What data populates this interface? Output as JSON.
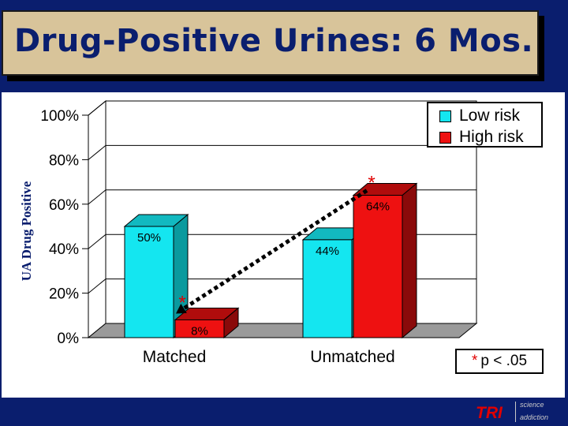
{
  "title": "Drug-Positive Urines: 6 Mos.",
  "chart_data": {
    "type": "bar",
    "categories": [
      "Matched",
      "Unmatched"
    ],
    "series": [
      {
        "name": "Low risk",
        "values": [
          50,
          44
        ],
        "labels": [
          "50%",
          "44%"
        ],
        "color": "#14e6f0"
      },
      {
        "name": "High risk",
        "values": [
          8,
          64
        ],
        "labels": [
          "8%",
          "64%"
        ],
        "color": "#ee1111"
      }
    ],
    "ylabel": "UA Drug Positive",
    "ylim": [
      0,
      100
    ],
    "yticks": [
      "0%",
      "20%",
      "40%",
      "60%",
      "80%",
      "100%"
    ],
    "legend_position": "top-right",
    "significance_marker": "*",
    "annotation": "p < .05"
  },
  "footer": {
    "logo": "TRI",
    "sub1": "science",
    "sub2": "addiction"
  }
}
